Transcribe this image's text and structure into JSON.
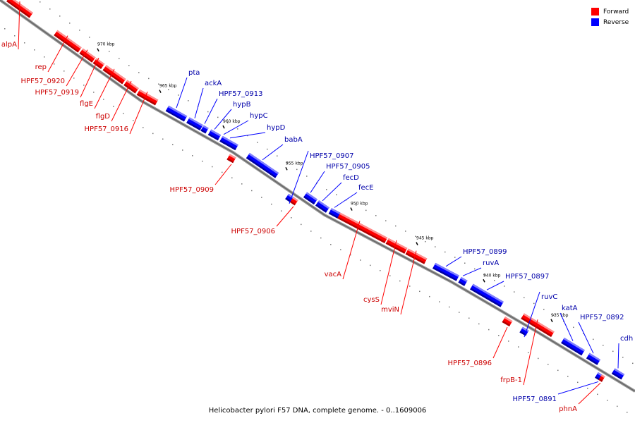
{
  "colors": {
    "forward": "#ff0000",
    "reverse": "#0000ff",
    "axis": "#888888"
  },
  "legend": [
    {
      "label": "Forward",
      "color": "#ff0000"
    },
    {
      "label": "Reverse",
      "color": "#0000ff"
    }
  ],
  "axis_labels": [
    "970 kbp",
    "965 kbp",
    "960 kbp",
    "955 kbp",
    "950 kbp",
    "945 kbp",
    "940 kbp",
    "935 kbp"
  ],
  "genes": [
    {
      "name": "alpA",
      "strand": "Forward"
    },
    {
      "name": "rep",
      "strand": "Forward"
    },
    {
      "name": "HPF57_0920",
      "strand": "Forward"
    },
    {
      "name": "HPF57_0919",
      "strand": "Forward"
    },
    {
      "name": "flgE",
      "strand": "Forward"
    },
    {
      "name": "flgD",
      "strand": "Forward"
    },
    {
      "name": "HPF57_0916",
      "strand": "Forward"
    },
    {
      "name": "pta",
      "strand": "Reverse"
    },
    {
      "name": "ackA",
      "strand": "Reverse"
    },
    {
      "name": "HPF57_0913",
      "strand": "Reverse"
    },
    {
      "name": "hypB",
      "strand": "Reverse"
    },
    {
      "name": "hypC",
      "strand": "Reverse"
    },
    {
      "name": "hypD",
      "strand": "Reverse"
    },
    {
      "name": "babA",
      "strand": "Reverse"
    },
    {
      "name": "HPF57_0909",
      "strand": "Forward"
    },
    {
      "name": "HPF57_0907",
      "strand": "Reverse"
    },
    {
      "name": "HPF57_0905",
      "strand": "Reverse"
    },
    {
      "name": "fecD",
      "strand": "Reverse"
    },
    {
      "name": "fecE",
      "strand": "Reverse"
    },
    {
      "name": "HPF57_0906",
      "strand": "Forward"
    },
    {
      "name": "vacA",
      "strand": "Forward"
    },
    {
      "name": "cysS",
      "strand": "Forward"
    },
    {
      "name": "mviN",
      "strand": "Forward"
    },
    {
      "name": "HPF57_0899",
      "strand": "Reverse"
    },
    {
      "name": "ruvA",
      "strand": "Reverse"
    },
    {
      "name": "HPF57_0897",
      "strand": "Reverse"
    },
    {
      "name": "ruvC",
      "strand": "Reverse"
    },
    {
      "name": "katA",
      "strand": "Reverse"
    },
    {
      "name": "HPF57_0892",
      "strand": "Reverse"
    },
    {
      "name": "cdh",
      "strand": "Reverse"
    },
    {
      "name": "HPF57_0896",
      "strand": "Forward"
    },
    {
      "name": "frpB-1",
      "strand": "Forward"
    },
    {
      "name": "HPF57_0891",
      "strand": "Reverse"
    },
    {
      "name": "phnA",
      "strand": "Forward"
    }
  ],
  "footer": "Helicobacter pylori F57 DNA, complete genome. - 0..1609006"
}
